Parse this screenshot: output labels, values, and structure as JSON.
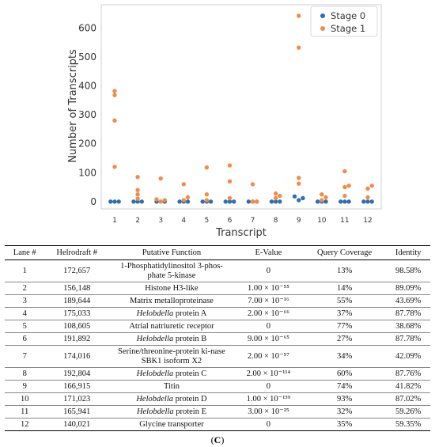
{
  "chart_data": {
    "type": "scatter",
    "xlabel": "Transcript",
    "ylabel": "Number of Transcripts",
    "categories": [
      "1",
      "2",
      "3",
      "4",
      "5",
      "6",
      "7",
      "8",
      "9",
      "10",
      "11",
      "12"
    ],
    "y_ticks": [
      0,
      100,
      200,
      300,
      400,
      500,
      600
    ],
    "ylim": [
      -25,
      680
    ],
    "grid": false,
    "legend_position": "top-right",
    "series": [
      {
        "name": "Stage 0",
        "color": "#2f6fb0",
        "points": [
          [
            1,
            0
          ],
          [
            1,
            0
          ],
          [
            1,
            0
          ],
          [
            2,
            0
          ],
          [
            2,
            0
          ],
          [
            2,
            0
          ],
          [
            3,
            0
          ],
          [
            3,
            0
          ],
          [
            3,
            0
          ],
          [
            4,
            0
          ],
          [
            4,
            0
          ],
          [
            4,
            0
          ],
          [
            5,
            0
          ],
          [
            5,
            0
          ],
          [
            5,
            0
          ],
          [
            6,
            0
          ],
          [
            6,
            0
          ],
          [
            6,
            0
          ],
          [
            7,
            0
          ],
          [
            7,
            0
          ],
          [
            7,
            0
          ],
          [
            8,
            0
          ],
          [
            8,
            0
          ],
          [
            8,
            0
          ],
          [
            9,
            5
          ],
          [
            9,
            12
          ],
          [
            9,
            18
          ],
          [
            10,
            0
          ],
          [
            10,
            0
          ],
          [
            10,
            0
          ],
          [
            11,
            0
          ],
          [
            11,
            0
          ],
          [
            11,
            0
          ],
          [
            12,
            0
          ],
          [
            12,
            0
          ],
          [
            12,
            0
          ]
        ]
      },
      {
        "name": "Stage 1",
        "color": "#f28c4a",
        "points": [
          [
            1,
            120
          ],
          [
            1,
            280
          ],
          [
            1,
            368
          ],
          [
            1,
            382
          ],
          [
            2,
            10
          ],
          [
            2,
            25
          ],
          [
            2,
            40
          ],
          [
            2,
            85
          ],
          [
            3,
            0
          ],
          [
            3,
            5
          ],
          [
            3,
            8
          ],
          [
            3,
            80
          ],
          [
            4,
            5
          ],
          [
            4,
            15
          ],
          [
            4,
            60
          ],
          [
            5,
            5
          ],
          [
            5,
            25
          ],
          [
            5,
            118
          ],
          [
            6,
            12
          ],
          [
            6,
            70
          ],
          [
            6,
            125
          ],
          [
            7,
            0
          ],
          [
            7,
            0
          ],
          [
            7,
            60
          ],
          [
            8,
            12
          ],
          [
            8,
            20
          ],
          [
            8,
            28
          ],
          [
            9,
            62
          ],
          [
            9,
            82
          ],
          [
            9,
            532
          ],
          [
            9,
            642
          ],
          [
            10,
            5
          ],
          [
            10,
            15
          ],
          [
            10,
            25
          ],
          [
            11,
            20
          ],
          [
            11,
            50
          ],
          [
            11,
            55
          ],
          [
            11,
            105
          ],
          [
            12,
            15
          ],
          [
            12,
            45
          ],
          [
            12,
            55
          ]
        ]
      }
    ]
  },
  "table": {
    "headers": [
      "Lane #",
      "Helrodraft #",
      "Putative Function",
      "E-Value",
      "Query Coverage",
      "Identity"
    ],
    "rows": [
      {
        "lane": "1",
        "helrodraft": "172,657",
        "func_italic": "",
        "func": "1-Phosphatidylinositol 3-phos-phate 5-kinase",
        "evalue": "0",
        "coverage": "13%",
        "identity": "98.58%"
      },
      {
        "lane": "2",
        "helrodraft": "156,148",
        "func_italic": "",
        "func": "Histone H3-like",
        "evalue": "1.00 × 10⁻⁵⁵",
        "coverage": "14%",
        "identity": "89.09%"
      },
      {
        "lane": "3",
        "helrodraft": "189,644",
        "func_italic": "",
        "func": "Matrix metalloproteinase",
        "evalue": "7.00 × 10⁻¹⁶",
        "coverage": "55%",
        "identity": "43.69%"
      },
      {
        "lane": "4",
        "helrodraft": "175,033",
        "func_italic": "Helobdella",
        "func": " protein A",
        "evalue": "2.00 × 10⁻⁶⁶",
        "coverage": "37%",
        "identity": "87.78%"
      },
      {
        "lane": "5",
        "helrodraft": "108,605",
        "func_italic": "",
        "func": "Atrial natriuretic receptor",
        "evalue": "0",
        "coverage": "77%",
        "identity": "38.68%"
      },
      {
        "lane": "6",
        "helrodraft": "191,892",
        "func_italic": "Helobdella",
        "func": " protein B",
        "evalue": "9.00 × 10⁻⁶⁵",
        "coverage": "27%",
        "identity": "87.78%"
      },
      {
        "lane": "7",
        "helrodraft": "174,016",
        "func_italic": "",
        "func": "Serine/threonine-protein ki-nase SBK1 isoform X2",
        "evalue": "2.00 × 10⁻⁵⁷",
        "coverage": "34%",
        "identity": "42.09%"
      },
      {
        "lane": "8",
        "helrodraft": "192,804",
        "func_italic": "Helobdella",
        "func": " protein C",
        "evalue": "2.00 × 10⁻¹¹⁴",
        "coverage": "60%",
        "identity": "87.76%"
      },
      {
        "lane": "9",
        "helrodraft": "166,915",
        "func_italic": "",
        "func": "Titin",
        "evalue": "0",
        "coverage": "74%",
        "identity": "41.82%"
      },
      {
        "lane": "10",
        "helrodraft": "171,023",
        "func_italic": "Helobdella",
        "func": " protein D",
        "evalue": "1.00 × 10⁻¹³⁹",
        "coverage": "93%",
        "identity": "87.02%"
      },
      {
        "lane": "11",
        "helrodraft": "165,941",
        "func_italic": "Helobdella",
        "func": " protein E",
        "evalue": "3.00 × 10⁻²⁵",
        "coverage": "32%",
        "identity": "59.26%"
      },
      {
        "lane": "12",
        "helrodraft": "140,021",
        "func_italic": "",
        "func": "Glycine transporter",
        "evalue": "0",
        "coverage": "35%",
        "identity": "59.35%"
      }
    ]
  },
  "caption": {
    "open": "(",
    "letter": "C",
    "close": ")"
  }
}
